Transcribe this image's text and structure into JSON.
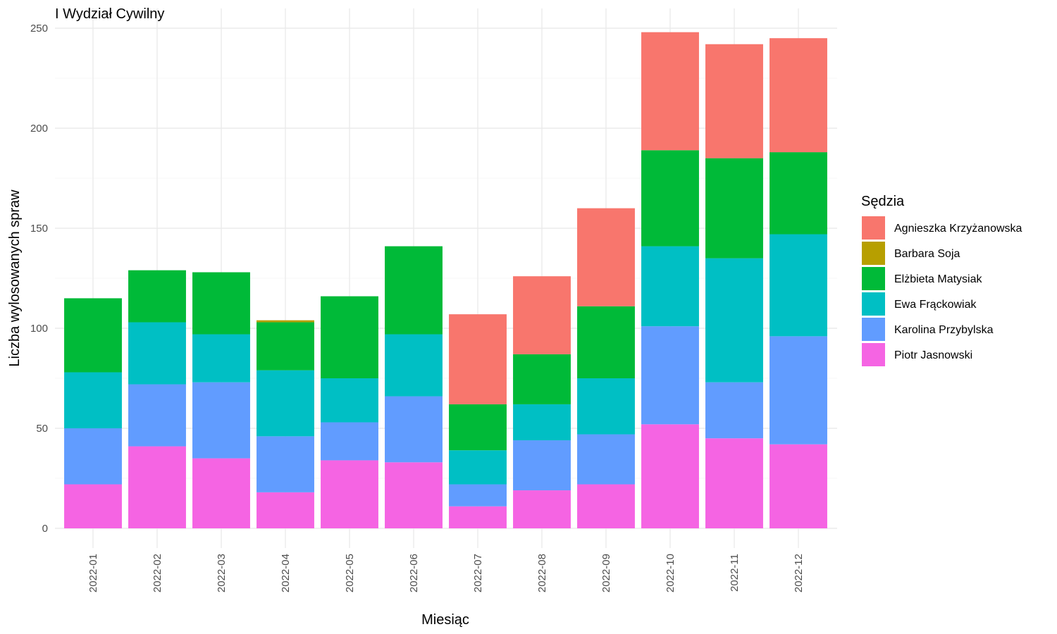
{
  "chart_data": {
    "type": "bar",
    "stacked": true,
    "title": "I Wydział Cywilny",
    "xlabel": "Miesiąc",
    "ylabel": "Liczba wylosowanych spraw",
    "ylim": [
      0,
      260
    ],
    "yticks": [
      0,
      50,
      100,
      150,
      200,
      250
    ],
    "grid": true,
    "legend": {
      "title": "Sędzia",
      "position": "right"
    },
    "categories": [
      "2022-01",
      "2022-02",
      "2022-03",
      "2022-04",
      "2022-05",
      "2022-06",
      "2022-07",
      "2022-08",
      "2022-09",
      "2022-10",
      "2022-11",
      "2022-12"
    ],
    "series": [
      {
        "name": "Piotr Jasnowski",
        "color": "#F564E3",
        "values": [
          22,
          41,
          35,
          18,
          34,
          33,
          11,
          19,
          22,
          52,
          45,
          42
        ]
      },
      {
        "name": "Karolina Przybylska",
        "color": "#619CFF",
        "values": [
          28,
          31,
          38,
          28,
          19,
          33,
          11,
          25,
          25,
          49,
          28,
          54
        ]
      },
      {
        "name": "Ewa Frąckowiak",
        "color": "#00BFC4",
        "values": [
          28,
          31,
          24,
          33,
          22,
          31,
          17,
          18,
          28,
          40,
          62,
          51
        ]
      },
      {
        "name": "Elżbieta Matysiak",
        "color": "#00BA38",
        "values": [
          37,
          26,
          31,
          24,
          41,
          44,
          23,
          25,
          36,
          48,
          50,
          41
        ]
      },
      {
        "name": "Barbara Soja",
        "color": "#B79F00",
        "values": [
          0,
          0,
          0,
          1,
          0,
          0,
          0,
          0,
          0,
          0,
          0,
          0
        ]
      },
      {
        "name": "Agnieszka Krzyżanowska",
        "color": "#F8766D",
        "values": [
          0,
          0,
          0,
          0,
          0,
          0,
          45,
          39,
          49,
          59,
          57,
          57
        ]
      }
    ],
    "legend_order": [
      "Agnieszka Krzyżanowska",
      "Barbara Soja",
      "Elżbieta Matysiak",
      "Ewa Frąckowiak",
      "Karolina Przybylska",
      "Piotr Jasnowski"
    ]
  }
}
